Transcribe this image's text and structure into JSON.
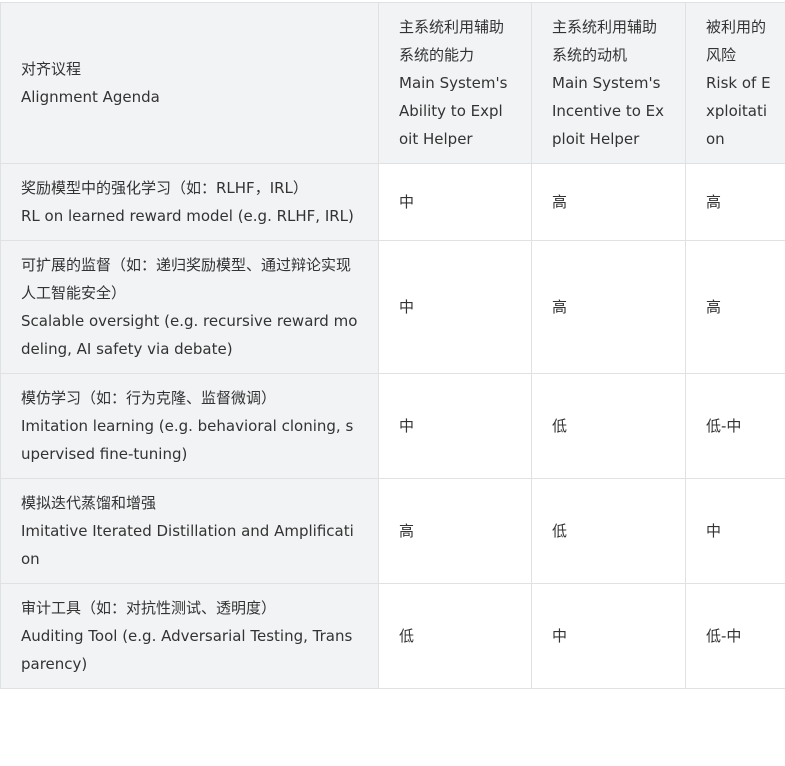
{
  "headers": [
    {
      "zh": "对齐议程",
      "en": "Alignment Agenda"
    },
    {
      "zh": "主系统利用辅助系统的能力",
      "en": "Main System's Ability to Exploit Helper"
    },
    {
      "zh": "主系统利用辅助系统的动机",
      "en": "Main System's Incentive to Exploit Helper"
    },
    {
      "zh": "被利用的风险",
      "en": "Risk of Exploitation"
    }
  ],
  "rows": [
    {
      "zh": "奖励模型中的强化学习（如：RLHF，IRL）",
      "en": "RL on learned reward model (e.g. RLHF, IRL)",
      "ability": "中",
      "incentive": "高",
      "risk": "高"
    },
    {
      "zh": "可扩展的监督（如：递归奖励模型、通过辩论实现人工智能安全）",
      "en": "Scalable oversight (e.g. recursive reward modeling, AI safety via debate)",
      "ability": "中",
      "incentive": "高",
      "risk": "高"
    },
    {
      "zh": "模仿学习（如：行为克隆、监督微调）",
      "en": "Imitation learning (e.g. behavioral cloning, supervised fine-tuning)",
      "ability": "中",
      "incentive": "低",
      "risk": "低-中"
    },
    {
      "zh": "模拟迭代蒸馏和增强",
      "en": "Imitative Iterated Distillation and Amplification",
      "ability": "高",
      "incentive": "低",
      "risk": "中"
    },
    {
      "zh": "审计工具（如：对抗性测试、透明度）",
      "en": "Auditing Tool (e.g. Adversarial Testing, Transparency)",
      "ability": "低",
      "incentive": "中",
      "risk": "低-中"
    }
  ]
}
